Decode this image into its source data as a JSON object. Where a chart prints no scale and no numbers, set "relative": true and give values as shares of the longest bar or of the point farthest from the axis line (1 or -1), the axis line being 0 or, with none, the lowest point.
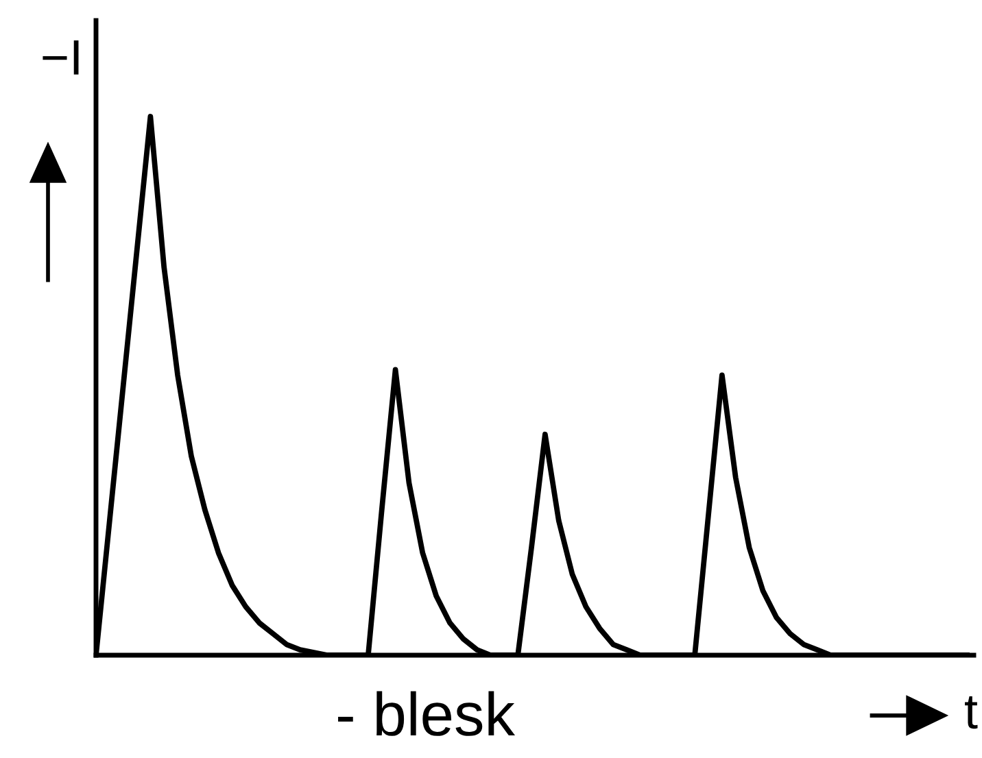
{
  "chart_data": {
    "type": "line",
    "relative": true,
    "categories": [
      null,
      null,
      null,
      null,
      null,
      null,
      null,
      null,
      null,
      null,
      null,
      null,
      null,
      null,
      null,
      null,
      null,
      null,
      null,
      null,
      null,
      null,
      null,
      null,
      null,
      null,
      null,
      null,
      null,
      null,
      null,
      null,
      null,
      null,
      null,
      null,
      null,
      null,
      null,
      null,
      null,
      null,
      null,
      null,
      null,
      null,
      null,
      null,
      null,
      null,
      null,
      null,
      null,
      null,
      null,
      null,
      null,
      null,
      null,
      null,
      null,
      null,
      null,
      null,
      null
    ],
    "series": [
      {
        "color": "#000000",
        "values": [
          0,
          0.25,
          0.5,
          0.75,
          1.0,
          0.72,
          0.52,
          0.37,
          0.27,
          0.19,
          0.13,
          0.09,
          0.06,
          0.04,
          0.02,
          0.01,
          0.005,
          0,
          0,
          0,
          0,
          0.27,
          0.53,
          0.32,
          0.19,
          0.11,
          0.06,
          0.03,
          0.01,
          0,
          0,
          0,
          0.2,
          0.41,
          0.25,
          0.15,
          0.09,
          0.05,
          0.02,
          0.01,
          0,
          0,
          0,
          0,
          0,
          0.26,
          0.52,
          0.33,
          0.2,
          0.12,
          0.07,
          0.04,
          0.02,
          0.01,
          0,
          0,
          0,
          0,
          0,
          0,
          0,
          0,
          0,
          0,
          0
        ]
      }
    ],
    "ylabel": "−I",
    "xlabel": "t",
    "annotations": [
      "- blesk"
    ]
  }
}
